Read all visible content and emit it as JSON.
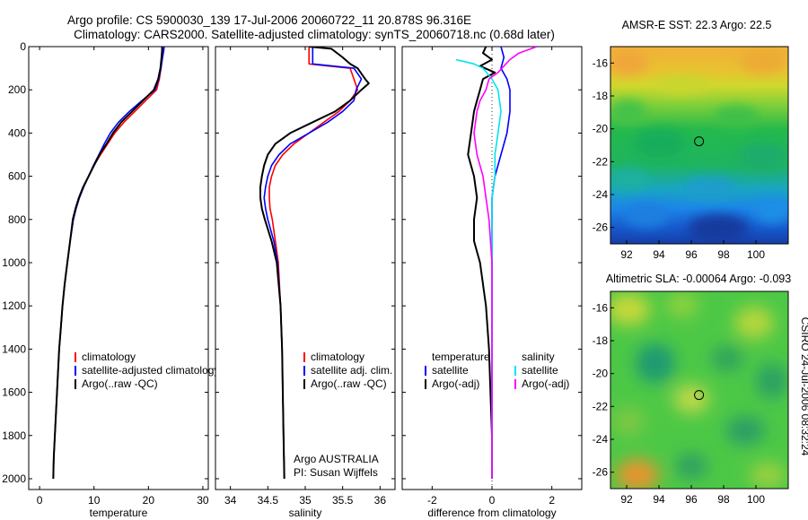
{
  "header": {
    "line1": "Argo profile: CS 5900030_139 17-Jul-2006 20060722_11 20.878S 96.316E",
    "line2": "Climatology: CARS2000. Satellite-adjusted climatology: synTS_20060718.nc (0.68d later)"
  },
  "side_label": "CSIRO 24-Jul-2006 08:32:24",
  "colors": {
    "climatology": "#ff0000",
    "satellite": "#0000ff",
    "argo": "#000000",
    "salinity_satellite": "#00e5ee",
    "salinity_argo": "#ff00ff"
  },
  "chart_data": [
    {
      "id": "temperature",
      "type": "line",
      "xlabel": "temperature",
      "xlim": [
        -2,
        31
      ],
      "xticks": [
        0,
        10,
        20,
        30
      ],
      "ylim": [
        0,
        2050
      ],
      "yticks": [
        0,
        200,
        400,
        600,
        800,
        1000,
        1200,
        1400,
        1600,
        1800,
        2000
      ],
      "y_reversed": true,
      "legend": [
        "climatology",
        "satellite-adjusted climatology",
        "Argo(..raw -QC)"
      ],
      "series": [
        {
          "name": "climatology",
          "color": "#ff0000",
          "points": [
            [
              22.7,
              0
            ],
            [
              22.6,
              20
            ],
            [
              22.5,
              50
            ],
            [
              22.3,
              100
            ],
            [
              22.0,
              150
            ],
            [
              21.5,
              200
            ],
            [
              19.5,
              250
            ],
            [
              17.5,
              300
            ],
            [
              15.5,
              350
            ],
            [
              13.8,
              400
            ],
            [
              12.5,
              450
            ],
            [
              11.2,
              500
            ],
            [
              10.0,
              550
            ],
            [
              9.0,
              600
            ],
            [
              8.1,
              650
            ],
            [
              7.3,
              700
            ],
            [
              6.7,
              750
            ],
            [
              6.2,
              800
            ],
            [
              5.6,
              900
            ],
            [
              5.1,
              1000
            ],
            [
              4.6,
              1100
            ],
            [
              4.2,
              1200
            ],
            [
              3.9,
              1300
            ],
            [
              3.6,
              1400
            ],
            [
              3.4,
              1500
            ],
            [
              3.2,
              1600
            ],
            [
              3.0,
              1700
            ],
            [
              2.8,
              1800
            ],
            [
              2.6,
              1900
            ],
            [
              2.5,
              2000
            ]
          ]
        },
        {
          "name": "satellite-adjusted climatology",
          "color": "#0000ff",
          "points": [
            [
              22.9,
              0
            ],
            [
              22.8,
              20
            ],
            [
              22.6,
              50
            ],
            [
              22.3,
              100
            ],
            [
              21.9,
              150
            ],
            [
              21.2,
              200
            ],
            [
              18.8,
              250
            ],
            [
              16.5,
              300
            ],
            [
              14.5,
              350
            ],
            [
              13.0,
              400
            ],
            [
              11.9,
              450
            ],
            [
              10.9,
              500
            ],
            [
              9.9,
              550
            ],
            [
              9.0,
              600
            ],
            [
              8.1,
              650
            ],
            [
              7.3,
              700
            ],
            [
              6.7,
              750
            ],
            [
              6.2,
              800
            ],
            [
              5.6,
              900
            ],
            [
              5.1,
              1000
            ],
            [
              4.6,
              1100
            ],
            [
              4.2,
              1200
            ],
            [
              3.9,
              1300
            ],
            [
              3.6,
              1400
            ],
            [
              3.4,
              1500
            ],
            [
              3.2,
              1600
            ],
            [
              3.0,
              1700
            ],
            [
              2.8,
              1800
            ],
            [
              2.6,
              1900
            ],
            [
              2.5,
              2000
            ]
          ]
        },
        {
          "name": "Argo(..raw -QC)",
          "color": "#000000",
          "points": [
            [
              22.5,
              0
            ],
            [
              22.5,
              20
            ],
            [
              22.4,
              50
            ],
            [
              22.2,
              100
            ],
            [
              21.8,
              150
            ],
            [
              21.0,
              200
            ],
            [
              19.0,
              250
            ],
            [
              17.0,
              300
            ],
            [
              15.0,
              350
            ],
            [
              13.5,
              400
            ],
            [
              12.3,
              450
            ],
            [
              11.0,
              500
            ],
            [
              10.0,
              550
            ],
            [
              9.0,
              600
            ],
            [
              8.0,
              650
            ],
            [
              7.2,
              700
            ],
            [
              6.6,
              750
            ],
            [
              6.1,
              800
            ],
            [
              5.6,
              900
            ],
            [
              5.1,
              1000
            ],
            [
              4.6,
              1100
            ],
            [
              4.2,
              1200
            ],
            [
              3.9,
              1300
            ],
            [
              3.6,
              1400
            ],
            [
              3.4,
              1500
            ],
            [
              3.2,
              1600
            ],
            [
              3.0,
              1700
            ],
            [
              2.8,
              1800
            ],
            [
              2.6,
              1900
            ],
            [
              2.5,
              2000
            ]
          ]
        }
      ]
    },
    {
      "id": "salinity",
      "type": "line",
      "xlabel": "salinity",
      "xlim": [
        33.8,
        36.2
      ],
      "xticks": [
        34,
        34.5,
        35,
        35.5,
        36
      ],
      "ylim": [
        0,
        2050
      ],
      "y_reversed": true,
      "legend": [
        "climatology",
        "satellite adj. clim.",
        "Argo(..raw -QC)"
      ],
      "annotation": [
        "Argo AUSTRALIA",
        "PI: Susan Wijffels"
      ],
      "series": [
        {
          "name": "climatology",
          "color": "#ff0000",
          "points": [
            [
              35.05,
              0
            ],
            [
              35.05,
              80
            ],
            [
              35.6,
              100
            ],
            [
              35.65,
              150
            ],
            [
              35.7,
              200
            ],
            [
              35.6,
              250
            ],
            [
              35.45,
              300
            ],
            [
              35.25,
              350
            ],
            [
              35.05,
              400
            ],
            [
              34.85,
              450
            ],
            [
              34.7,
              500
            ],
            [
              34.6,
              550
            ],
            [
              34.55,
              600
            ],
            [
              34.52,
              650
            ],
            [
              34.52,
              700
            ],
            [
              34.53,
              750
            ],
            [
              34.56,
              800
            ],
            [
              34.6,
              900
            ],
            [
              34.64,
              1000
            ],
            [
              34.67,
              1200
            ],
            [
              34.69,
              1400
            ],
            [
              34.7,
              1600
            ],
            [
              34.71,
              1800
            ],
            [
              34.72,
              2000
            ]
          ]
        },
        {
          "name": "satellite adj. clim.",
          "color": "#0000ff",
          "points": [
            [
              35.1,
              0
            ],
            [
              35.1,
              80
            ],
            [
              35.65,
              100
            ],
            [
              35.75,
              150
            ],
            [
              35.68,
              200
            ],
            [
              35.65,
              250
            ],
            [
              35.5,
              300
            ],
            [
              35.3,
              350
            ],
            [
              35.05,
              400
            ],
            [
              34.8,
              450
            ],
            [
              34.65,
              500
            ],
            [
              34.55,
              550
            ],
            [
              34.5,
              600
            ],
            [
              34.47,
              650
            ],
            [
              34.45,
              700
            ],
            [
              34.47,
              750
            ],
            [
              34.5,
              800
            ],
            [
              34.58,
              900
            ],
            [
              34.63,
              1000
            ],
            [
              34.67,
              1200
            ],
            [
              34.69,
              1400
            ],
            [
              34.7,
              1600
            ],
            [
              34.71,
              1800
            ],
            [
              34.72,
              2000
            ]
          ]
        },
        {
          "name": "Argo(..raw -QC)",
          "color": "#000000",
          "points": [
            [
              35.05,
              0
            ],
            [
              35.35,
              10
            ],
            [
              35.5,
              50
            ],
            [
              35.6,
              80
            ],
            [
              35.7,
              100
            ],
            [
              35.8,
              150
            ],
            [
              35.85,
              170
            ],
            [
              35.75,
              200
            ],
            [
              35.6,
              250
            ],
            [
              35.4,
              300
            ],
            [
              35.1,
              350
            ],
            [
              34.8,
              400
            ],
            [
              34.6,
              450
            ],
            [
              34.5,
              500
            ],
            [
              34.45,
              550
            ],
            [
              34.42,
              600
            ],
            [
              34.4,
              650
            ],
            [
              34.4,
              700
            ],
            [
              34.42,
              750
            ],
            [
              34.46,
              800
            ],
            [
              34.55,
              900
            ],
            [
              34.62,
              1000
            ],
            [
              34.67,
              1200
            ],
            [
              34.69,
              1400
            ],
            [
              34.7,
              1600
            ],
            [
              34.71,
              1800
            ],
            [
              34.72,
              2000
            ]
          ]
        }
      ]
    },
    {
      "id": "difference",
      "type": "line",
      "xlabel": "difference from climatology",
      "xlim": [
        -3,
        3
      ],
      "xticks": [
        -2,
        0,
        2
      ],
      "ylim": [
        0,
        2050
      ],
      "y_reversed": true,
      "legend": [
        "temperature",
        "satellite",
        "Argo(-adj)",
        "salinity",
        "satellite",
        "Argo(-adj)"
      ],
      "series": [
        {
          "name": "temperature satellite",
          "color": "#0000ff",
          "points": [
            [
              0.3,
              0
            ],
            [
              0.4,
              50
            ],
            [
              0.3,
              100
            ],
            [
              0.5,
              150
            ],
            [
              0.6,
              200
            ],
            [
              0.6,
              300
            ],
            [
              0.5,
              400
            ],
            [
              0.3,
              500
            ],
            [
              0.1,
              600
            ],
            [
              0.0,
              700
            ],
            [
              0.0,
              800
            ],
            [
              0.0,
              1000
            ],
            [
              0.0,
              2000
            ]
          ]
        },
        {
          "name": "temperature Argo(-adj)",
          "color": "#000000",
          "points": [
            [
              -0.2,
              0
            ],
            [
              -0.3,
              30
            ],
            [
              0.0,
              60
            ],
            [
              -0.4,
              90
            ],
            [
              0.1,
              120
            ],
            [
              -0.3,
              150
            ],
            [
              -0.4,
              200
            ],
            [
              -0.5,
              250
            ],
            [
              -0.6,
              300
            ],
            [
              -0.7,
              400
            ],
            [
              -0.8,
              500
            ],
            [
              -0.6,
              600
            ],
            [
              -0.5,
              700
            ],
            [
              -0.6,
              800
            ],
            [
              -0.6,
              900
            ],
            [
              -0.4,
              1000
            ],
            [
              -0.2,
              1200
            ],
            [
              -0.1,
              1400
            ],
            [
              -0.05,
              1600
            ],
            [
              0.0,
              1800
            ],
            [
              0.0,
              2000
            ]
          ]
        },
        {
          "name": "salinity satellite",
          "color": "#00e5ee",
          "points": [
            [
              -1.2,
              60
            ],
            [
              -0.6,
              80
            ],
            [
              -0.3,
              100
            ],
            [
              0.0,
              150
            ],
            [
              0.2,
              200
            ],
            [
              0.3,
              300
            ],
            [
              0.2,
              400
            ],
            [
              0.1,
              500
            ],
            [
              0.1,
              600
            ],
            [
              0.0,
              700
            ],
            [
              0.0,
              800
            ],
            [
              0.0,
              1000
            ],
            [
              0.0,
              2000
            ]
          ]
        },
        {
          "name": "salinity Argo(-adj)",
          "color": "#ff00ff",
          "points": [
            [
              1.5,
              0
            ],
            [
              0.9,
              30
            ],
            [
              0.6,
              60
            ],
            [
              0.4,
              90
            ],
            [
              0.2,
              120
            ],
            [
              -0.1,
              150
            ],
            [
              -0.2,
              200
            ],
            [
              -0.4,
              250
            ],
            [
              -0.5,
              300
            ],
            [
              -0.6,
              400
            ],
            [
              -0.5,
              500
            ],
            [
              -0.3,
              600
            ],
            [
              -0.2,
              700
            ],
            [
              -0.1,
              800
            ],
            [
              0.0,
              1000
            ],
            [
              0.0,
              2000
            ]
          ]
        }
      ]
    },
    {
      "id": "sst_map",
      "type": "heatmap",
      "title": "AMSR-E SST: 22.3 Argo: 22.5",
      "xticks": [
        92,
        94,
        96,
        98,
        100
      ],
      "yticks": [
        -16,
        -18,
        -20,
        -22,
        -24,
        -26
      ],
      "xlim": [
        91,
        102
      ],
      "ylim": [
        -27,
        -15
      ],
      "marker": {
        "lon": 96.316,
        "lat": -20.878
      }
    },
    {
      "id": "sla_map",
      "type": "heatmap",
      "title": "Altimetric SLA: -0.00064 Argo: -0.093",
      "xticks": [
        92,
        94,
        96,
        98,
        100
      ],
      "yticks": [
        -16,
        -18,
        -20,
        -22,
        -24,
        -26
      ],
      "xlim": [
        91,
        102
      ],
      "ylim": [
        -27,
        -15
      ],
      "marker": {
        "lon": 96.316,
        "lat": -20.878
      }
    }
  ]
}
